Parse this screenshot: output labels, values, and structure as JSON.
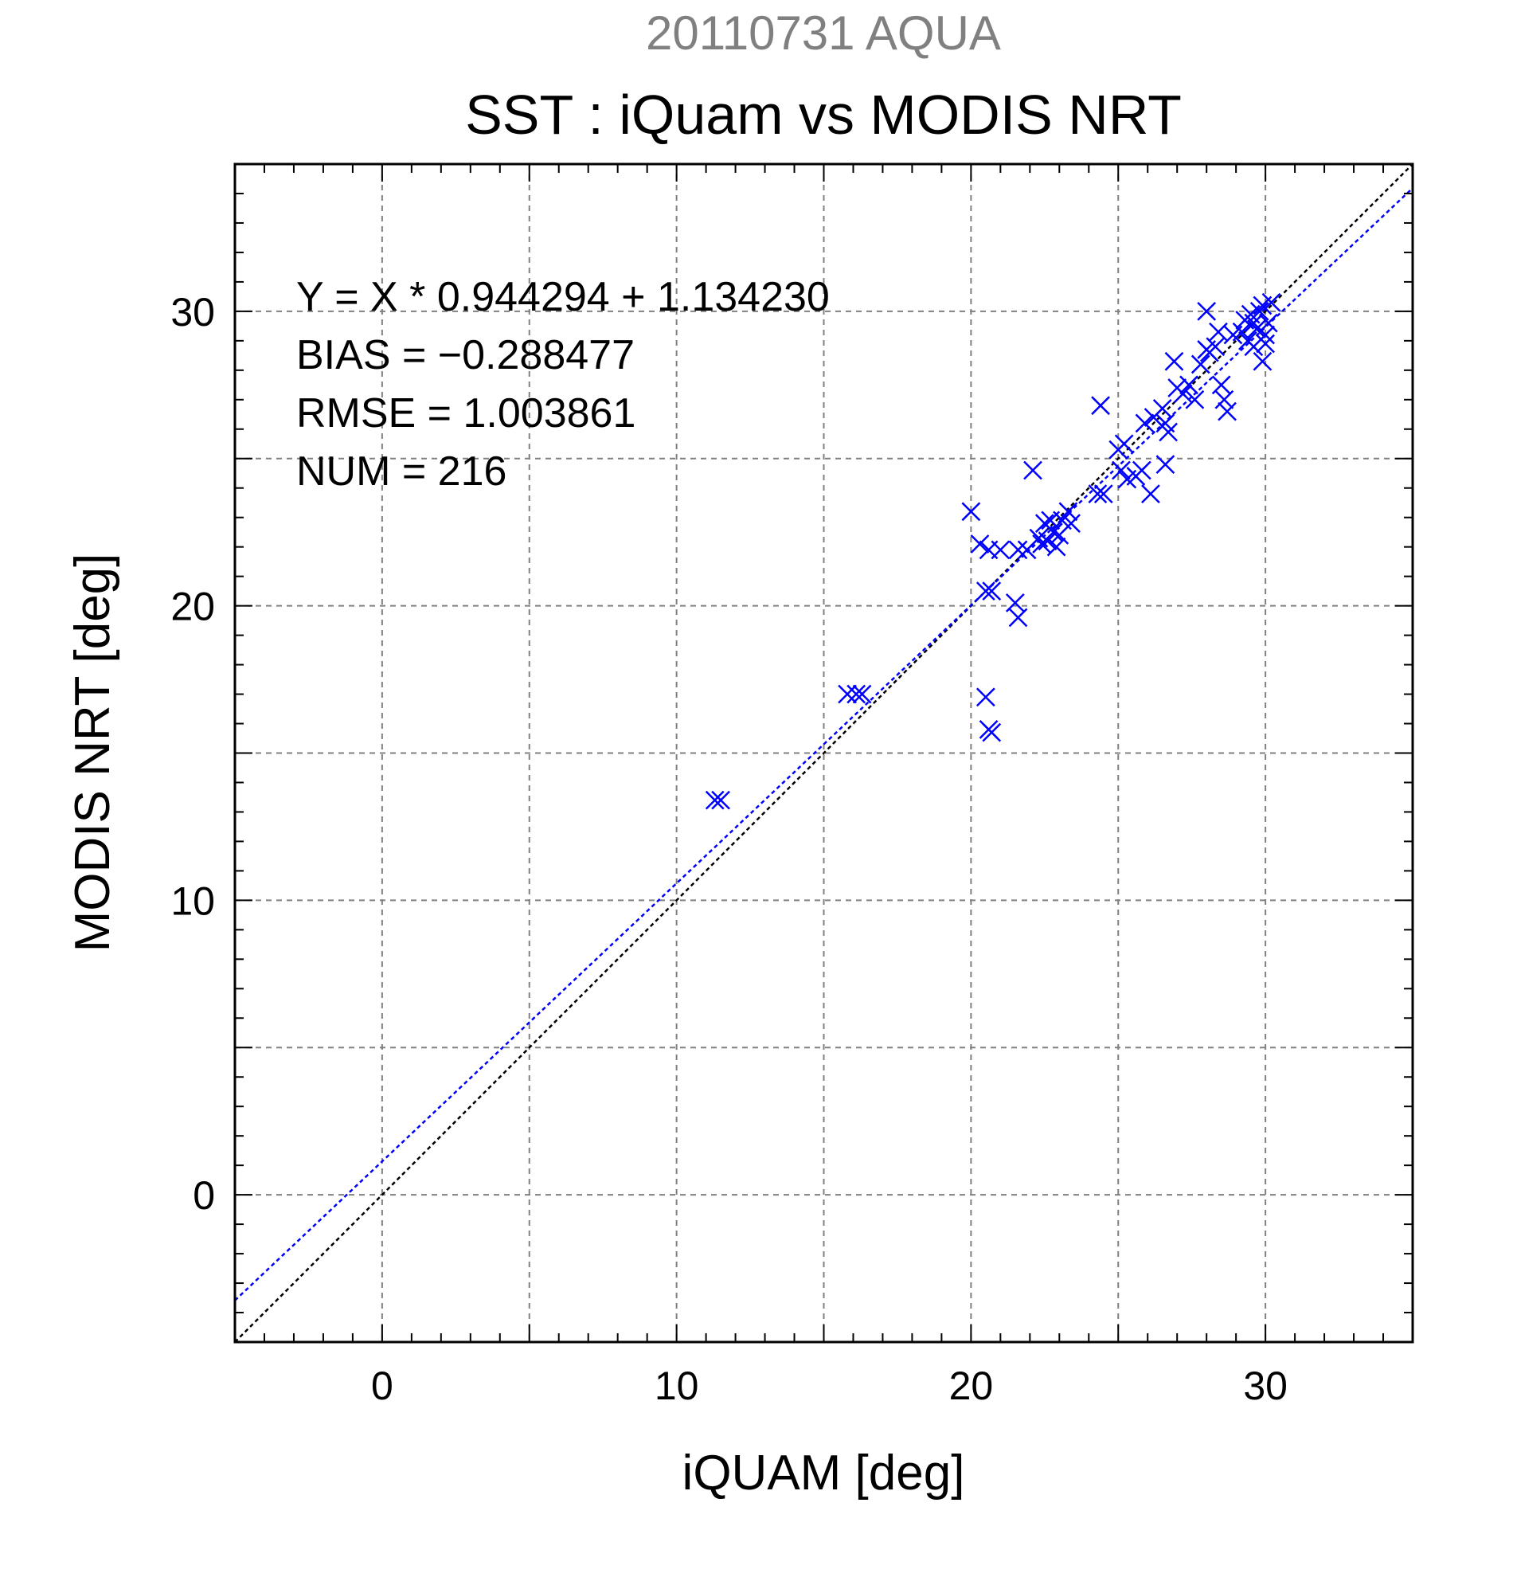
{
  "chart_data": {
    "type": "scatter",
    "date_title": "20110731 AQUA",
    "title": "SST : iQuam vs MODIS NRT",
    "xlabel": "iQUAM [deg]",
    "ylabel": "MODIS NRT [deg]",
    "xlim": [
      -5,
      35
    ],
    "ylim": [
      -5,
      35
    ],
    "xticks": [
      0,
      10,
      20,
      30
    ],
    "yticks": [
      0,
      10,
      20,
      30
    ],
    "grid": true,
    "marker": "x",
    "colors": {
      "points": "#0000ff",
      "fit_line": "#0000ff",
      "one_to_one": "#000000",
      "grid": "#808080",
      "date_title": "#808080"
    },
    "stats": [
      "Y = X * 0.944294 + 1.134230",
      "BIAS = −0.288477",
      "RMSE = 1.003861",
      "NUM = 216"
    ],
    "fit_line": {
      "slope": 0.944294,
      "intercept": 1.13423
    },
    "one_to_one_line": {
      "slope": 1,
      "intercept": 0
    },
    "series": [
      {
        "points": [
          [
            11.3,
            13.4
          ],
          [
            11.5,
            13.4
          ],
          [
            15.8,
            17.0
          ],
          [
            16.1,
            17.0
          ],
          [
            16.3,
            17.0
          ],
          [
            20.0,
            23.2
          ],
          [
            20.3,
            22.1
          ],
          [
            20.6,
            21.9
          ],
          [
            21.0,
            21.9
          ],
          [
            20.5,
            20.5
          ],
          [
            20.7,
            20.5
          ],
          [
            20.5,
            16.9
          ],
          [
            20.6,
            15.8
          ],
          [
            20.7,
            15.7
          ],
          [
            21.5,
            20.1
          ],
          [
            21.6,
            19.6
          ],
          [
            21.6,
            21.9
          ],
          [
            21.9,
            21.9
          ],
          [
            22.1,
            24.6
          ],
          [
            22.3,
            22.3
          ],
          [
            22.5,
            22.8
          ],
          [
            22.6,
            22.2
          ],
          [
            22.8,
            22.5
          ],
          [
            22.7,
            22.9
          ],
          [
            23.0,
            22.4
          ],
          [
            23.1,
            22.9
          ],
          [
            23.3,
            23.2
          ],
          [
            22.4,
            22.1
          ],
          [
            22.9,
            22.0
          ],
          [
            23.4,
            22.8
          ],
          [
            24.4,
            26.8
          ],
          [
            24.3,
            23.8
          ],
          [
            24.5,
            23.8
          ],
          [
            25.0,
            25.3
          ],
          [
            25.2,
            25.5
          ],
          [
            25.1,
            24.6
          ],
          [
            25.3,
            24.3
          ],
          [
            25.6,
            24.4
          ],
          [
            25.8,
            24.6
          ],
          [
            25.9,
            26.2
          ],
          [
            26.2,
            26.4
          ],
          [
            26.5,
            26.7
          ],
          [
            26.6,
            26.2
          ],
          [
            26.7,
            25.9
          ],
          [
            26.1,
            23.8
          ],
          [
            26.6,
            24.8
          ],
          [
            27.0,
            27.4
          ],
          [
            27.2,
            27.2
          ],
          [
            27.4,
            27.5
          ],
          [
            27.6,
            27.0
          ],
          [
            27.8,
            28.2
          ],
          [
            26.9,
            28.3
          ],
          [
            28.0,
            30.0
          ],
          [
            28.1,
            28.6
          ],
          [
            28.3,
            28.8
          ],
          [
            28.4,
            29.3
          ],
          [
            28.5,
            27.5
          ],
          [
            28.6,
            27.0
          ],
          [
            28.7,
            26.6
          ],
          [
            28.9,
            29.2
          ],
          [
            28.0,
            28.7
          ],
          [
            29.2,
            29.3
          ],
          [
            29.3,
            29.7
          ],
          [
            29.4,
            29.0
          ],
          [
            29.5,
            29.9
          ],
          [
            29.6,
            28.8
          ],
          [
            29.7,
            29.4
          ],
          [
            29.8,
            30.0
          ],
          [
            29.9,
            28.3
          ],
          [
            30.0,
            28.9
          ],
          [
            30.1,
            29.6
          ],
          [
            30.2,
            30.3
          ],
          [
            30.0,
            29.2
          ],
          [
            29.6,
            29.6
          ],
          [
            29.9,
            30.2
          ]
        ]
      }
    ]
  }
}
